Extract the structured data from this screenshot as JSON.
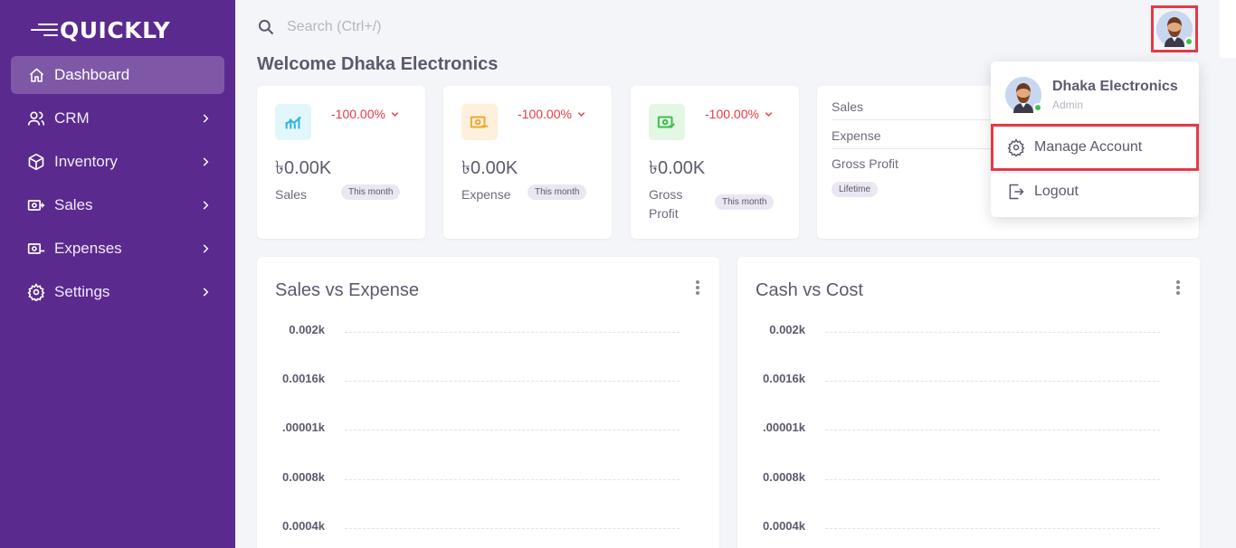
{
  "app": {
    "logo_text": "QUICKLY"
  },
  "sidebar": {
    "items": [
      {
        "label": "Dashboard",
        "icon": "home-icon",
        "active": true
      },
      {
        "label": "CRM",
        "icon": "users-icon"
      },
      {
        "label": "Inventory",
        "icon": "box-icon"
      },
      {
        "label": "Sales",
        "icon": "cash-plus-icon"
      },
      {
        "label": "Expenses",
        "icon": "cash-minus-icon"
      },
      {
        "label": "Settings",
        "icon": "gear-icon"
      }
    ]
  },
  "search": {
    "placeholder": "Search (Ctrl+/)"
  },
  "header": {
    "welcome": "Welcome Dhaka Electronics"
  },
  "stats": [
    {
      "label": "Sales",
      "value": "৳0.00K",
      "change": "-100.00%",
      "badge": "This month",
      "icon": "chart-icon",
      "color": "#e3f6fc"
    },
    {
      "label": "Expense",
      "value": "৳0.00K",
      "change": "-100.00%",
      "badge": "This month",
      "icon": "cash-icon",
      "color": "#fdf0dc"
    },
    {
      "label": "Gross Profit",
      "value": "৳0.00K",
      "change": "-100.00%",
      "badge": "This month",
      "icon": "cash-check-icon",
      "color": "#e4f6e4"
    }
  ],
  "summary": {
    "rows": [
      "Sales",
      "Expense",
      "Gross Profit"
    ],
    "badge": "Lifetime"
  },
  "charts": [
    {
      "title": "Sales vs Expense",
      "ticks": [
        "0.002k",
        "0.0016k",
        ".00001k",
        "0.0008k",
        "0.0004k"
      ]
    },
    {
      "title": "Cash vs Cost",
      "ticks": [
        "0.002k",
        "0.0016k",
        ".00001k",
        "0.0008k",
        "0.0004k"
      ]
    }
  ],
  "dropdown": {
    "name": "Dhaka Electronics",
    "role": "Admin",
    "manage": "Manage Account",
    "logout": "Logout"
  },
  "colors": {
    "sidebar": "#5a2a8f",
    "accent_red": "#e53945",
    "online": "#3fbf4f"
  }
}
